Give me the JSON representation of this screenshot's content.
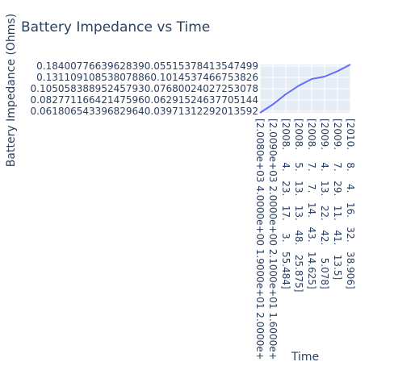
{
  "chart_data": {
    "type": "line",
    "title": "Battery Impedance vs Time",
    "xlabel": "Time",
    "ylabel": "Battery Impedance (Ohms)",
    "x_tick_labels": [
      "[2.0080e+03 4.0000e+00 1.9000e+01 2.0000e+",
      "[2.0090e+03 2.0000e+00 2.1000e+01 1.6000e+",
      "[2008.    4.   23.   17.    3.   55.484]",
      "[2008.    5.   13.   13.   48.   25.875]",
      "[2008.    7.    7.   14.   43.   14.625]",
      "[2009.    4.   13.   22.   42.    5.078]",
      "[2009.    7.   29.   11.   41.   13.5]",
      "[2010.    8.    4.   16.   32.   38.906]"
    ],
    "y_tick_labels": [
      "0.061806543396829640.03971312292013592",
      "0.082771166421475960.06291524637705144",
      "0.105058388952457930.07680024027253078",
      "0.131109108538078860.1014537466753826",
      "0.18400776639628390.05515378413547499"
    ],
    "series": [
      {
        "color": "#636efa",
        "x": [
          0,
          1,
          2,
          3,
          4,
          5,
          6,
          7
        ],
        "y": [
          0,
          0.7,
          1.55,
          2.25,
          2.8,
          3.0,
          3.45,
          4
        ]
      }
    ],
    "grid": true,
    "legend": "none",
    "plot_background": "#e5ecf6",
    "grid_color": "#ffffff",
    "text_color": "#2a3f5f"
  }
}
